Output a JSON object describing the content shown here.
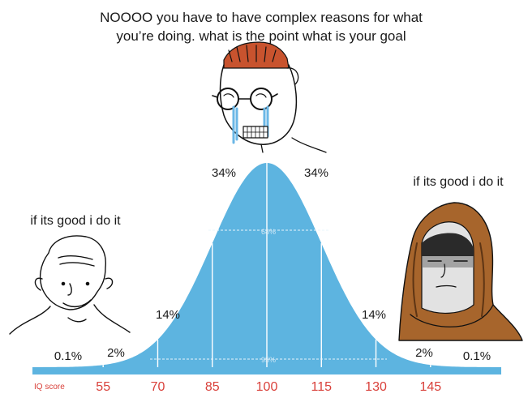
{
  "caption_top_line1": "NOOOO you have to have complex reasons for what",
  "caption_top_line2": "you’re doing. what is the point what is your goal",
  "caption_left": "if its good i do it",
  "caption_right": "if its good i do it",
  "chart_data": {
    "type": "area",
    "xlabel": "IQ score",
    "ticks": [
      "55",
      "70",
      "85",
      "100",
      "115",
      "130",
      "145"
    ],
    "x": [
      55,
      70,
      85,
      100,
      115,
      130,
      145
    ],
    "segments": [
      "0.1%",
      "2%",
      "14%",
      "34%",
      "34%",
      "14%",
      "2%",
      "0.1%"
    ],
    "bands": [
      "68%",
      "95%"
    ],
    "mean": 100,
    "sd": 15,
    "colors": {
      "curve": "#5db4e0",
      "lines": "#ffffff",
      "ticks": "#d9403a",
      "axis": "#5db4e0"
    }
  },
  "icons": [
    "left-meme-face-icon",
    "crying-nerd-face-icon",
    "hooded-figure-icon"
  ]
}
